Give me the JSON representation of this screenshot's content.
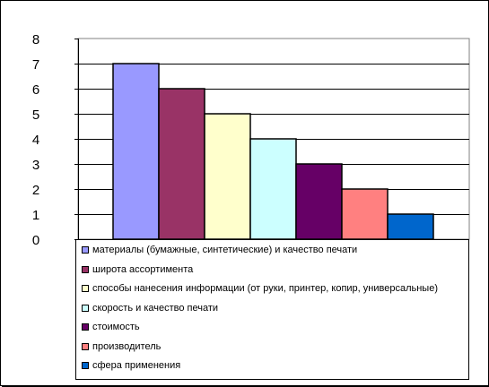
{
  "chart_data": {
    "type": "bar",
    "title": "",
    "xlabel": "",
    "ylabel": "",
    "ylim": [
      0,
      8
    ],
    "yticks": [
      "0",
      "1",
      "2",
      "3",
      "4",
      "5",
      "6",
      "7",
      "8"
    ],
    "grid": true,
    "legend_position": "bottom",
    "categories": [
      "материалы (бумажные, синтетические) и качество печати",
      "широта ассортимента",
      "способы нанесения информации (от руки, принтер, копир, универсальные)",
      "скорость и качество печати",
      "стоимость",
      "производитель",
      "сфера применения"
    ],
    "values": [
      7,
      6,
      5,
      4,
      3,
      2,
      1
    ],
    "colors": [
      "#9999ff",
      "#993366",
      "#ffffcc",
      "#ccffff",
      "#660066",
      "#ff8080",
      "#0066cc"
    ]
  }
}
